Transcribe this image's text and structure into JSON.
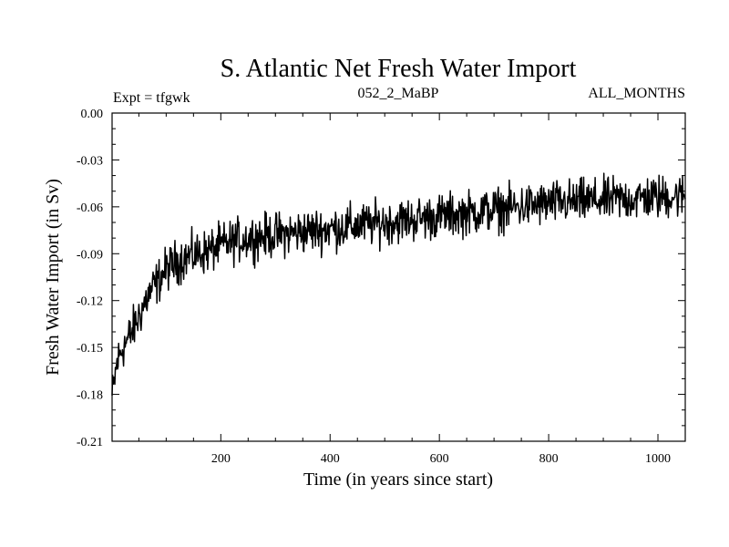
{
  "chart_data": {
    "type": "line",
    "title": "S. Atlantic Net Fresh Water Import",
    "subtitle_left": "Expt = tfgwk",
    "subtitle_center": "052_2_MaBP",
    "subtitle_right": "ALL_MONTHS",
    "xlabel": "Time (in years since start)",
    "ylabel": "Fresh Water Import (in Sv)",
    "xlim": [
      1,
      1050
    ],
    "ylim": [
      -0.21,
      0.0
    ],
    "x_ticks": [
      200,
      400,
      600,
      800,
      1000
    ],
    "x_tick_labels": [
      "200",
      "400",
      "600",
      "800",
      "1000"
    ],
    "y_ticks": [
      0.0,
      -0.03,
      -0.06,
      -0.09,
      -0.12,
      -0.15,
      -0.18,
      -0.21
    ],
    "y_tick_labels": [
      "0.00",
      "-0.03",
      "-0.06",
      "-0.09",
      "-0.12",
      "-0.15",
      "-0.18",
      "-0.21"
    ],
    "grid": false,
    "line_color": "#000000",
    "series": [
      {
        "name": "Net fresh water import",
        "x": [
          1,
          10,
          20,
          30,
          40,
          50,
          60,
          70,
          80,
          90,
          100,
          120,
          140,
          160,
          180,
          200,
          225,
          250,
          275,
          300,
          325,
          350,
          375,
          400,
          425,
          450,
          475,
          500,
          525,
          550,
          575,
          600,
          625,
          650,
          675,
          700,
          725,
          750,
          775,
          800,
          825,
          850,
          875,
          900,
          925,
          950,
          975,
          1000,
          1025,
          1050
        ],
        "values": [
          -0.182,
          -0.16,
          -0.15,
          -0.145,
          -0.138,
          -0.13,
          -0.122,
          -0.115,
          -0.11,
          -0.105,
          -0.1,
          -0.095,
          -0.092,
          -0.09,
          -0.088,
          -0.085,
          -0.082,
          -0.08,
          -0.079,
          -0.078,
          -0.077,
          -0.076,
          -0.075,
          -0.074,
          -0.073,
          -0.072,
          -0.071,
          -0.07,
          -0.069,
          -0.068,
          -0.067,
          -0.066,
          -0.065,
          -0.064,
          -0.063,
          -0.062,
          -0.061,
          -0.06,
          -0.059,
          -0.058,
          -0.057,
          -0.057,
          -0.056,
          -0.056,
          -0.055,
          -0.055,
          -0.054,
          -0.054,
          -0.053,
          -0.053
        ],
        "noise_amplitude": 0.013,
        "sample_step_years": 1
      }
    ]
  }
}
